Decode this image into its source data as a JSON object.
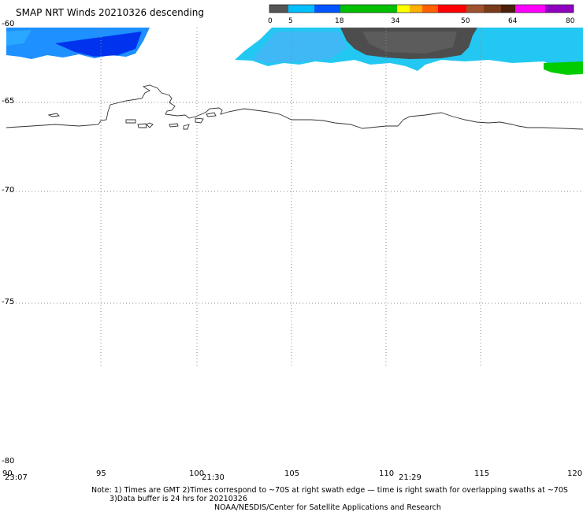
{
  "title": "SMAP NRT Winds  20210326 descending",
  "colorbar": {
    "ticks": [
      "0",
      "5",
      "18",
      "34",
      "50",
      "64",
      "80"
    ],
    "colors": [
      "#555555",
      "#00bfff",
      "#0066ff",
      "#00c800",
      "#ffff00",
      "#ff8c00",
      "#ff0000",
      "#8b4513",
      "#ff00ff",
      "#8000c0"
    ]
  },
  "latitude_labels": [
    "-60",
    "-65",
    "-70",
    "-75",
    "-80"
  ],
  "longitude_labels": [
    "90",
    "95",
    "100",
    "105",
    "110",
    "115",
    "120"
  ],
  "time_labels": [
    "23:07",
    "21:30",
    "21:29"
  ],
  "notes": {
    "line1": "Note: 1) Times are GMT 2)Times correspond to ~70S at right swath edge — time is right swath for overlapping swaths at ~70S",
    "line2": "3)Data buffer is 24 hrs for 20210326",
    "line3": "NOAA/NESDIS/Center for Satellite Applications and Research"
  },
  "colors": {
    "grid": "#888888",
    "coast": "#333333",
    "wind_blue": "#0044ff",
    "wind_cyan": "#1ec8f0",
    "wind_gray": "#4a4a4a",
    "wind_green": "#00cc00"
  }
}
